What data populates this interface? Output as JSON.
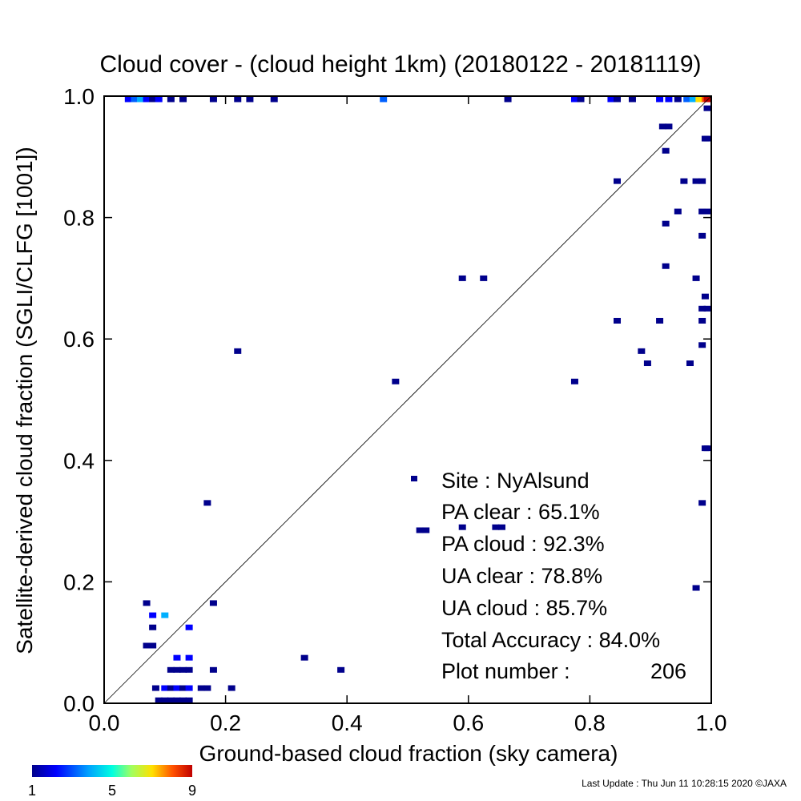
{
  "chart_data": {
    "type": "heatmap",
    "title": "Cloud cover - (cloud height 1km)  (20180122 - 20181119)",
    "xlabel": "Ground-based cloud fraction (sky camera)",
    "ylabel": "Satellite-derived cloud fraction (SGLI/CLFG [1001])",
    "xlim": [
      0,
      1
    ],
    "ylim": [
      0,
      1
    ],
    "xticks": [
      "0.0",
      "0.2",
      "0.4",
      "0.6",
      "0.8",
      "1.0"
    ],
    "yticks": [
      "0.0",
      "0.2",
      "0.4",
      "0.6",
      "0.8",
      "1.0"
    ],
    "grid": false,
    "reference_line": "1:1 diagonal",
    "colorbar": {
      "min": 1,
      "max": 9,
      "ticks": [
        "1",
        "5",
        "9"
      ],
      "colormap": "rainbow (blue to red)"
    },
    "stats": {
      "site": "Site : NyAlsund",
      "pa_clear": "PA clear :  65.1%",
      "pa_cloud": "PA cloud :  92.3%",
      "ua_clear": "UA clear :  78.8%",
      "ua_cloud": "UA cloud :  85.7%",
      "total_accuracy": "Total Accuracy :  84.0%",
      "plot_number_label": "Plot number :",
      "plot_number": "206"
    },
    "footer": "Last Update : Thu Jun 11 10:28:15 2020  ©JAXA",
    "points": [
      {
        "x": 0.04,
        "y": 1.0,
        "c": 2
      },
      {
        "x": 0.05,
        "y": 1.0,
        "c": 3
      },
      {
        "x": 0.06,
        "y": 1.0,
        "c": 4
      },
      {
        "x": 0.07,
        "y": 1.0,
        "c": 2
      },
      {
        "x": 0.08,
        "y": 1.0,
        "c": 1
      },
      {
        "x": 0.09,
        "y": 1.0,
        "c": 2
      },
      {
        "x": 0.11,
        "y": 1.0,
        "c": 1
      },
      {
        "x": 0.13,
        "y": 1.0,
        "c": 1
      },
      {
        "x": 0.18,
        "y": 1.0,
        "c": 1
      },
      {
        "x": 0.22,
        "y": 1.0,
        "c": 1
      },
      {
        "x": 0.24,
        "y": 1.0,
        "c": 1
      },
      {
        "x": 0.28,
        "y": 1.0,
        "c": 1
      },
      {
        "x": 0.46,
        "y": 1.0,
        "c": 3
      },
      {
        "x": 0.665,
        "y": 1.0,
        "c": 1
      },
      {
        "x": 0.775,
        "y": 1.0,
        "c": 2
      },
      {
        "x": 0.785,
        "y": 1.0,
        "c": 1
      },
      {
        "x": 0.835,
        "y": 1.0,
        "c": 2
      },
      {
        "x": 0.845,
        "y": 1.0,
        "c": 1
      },
      {
        "x": 0.87,
        "y": 1.0,
        "c": 1
      },
      {
        "x": 0.915,
        "y": 1.0,
        "c": 2
      },
      {
        "x": 0.93,
        "y": 1.0,
        "c": 2
      },
      {
        "x": 0.945,
        "y": 1.0,
        "c": 1
      },
      {
        "x": 0.96,
        "y": 1.0,
        "c": 3
      },
      {
        "x": 0.97,
        "y": 1.0,
        "c": 4
      },
      {
        "x": 0.98,
        "y": 1.0,
        "c": 7
      },
      {
        "x": 0.99,
        "y": 1.0,
        "c": 8
      },
      {
        "x": 1.0,
        "y": 1.0,
        "c": 9
      },
      {
        "x": 0.995,
        "y": 0.98,
        "c": 1
      },
      {
        "x": 0.92,
        "y": 0.95,
        "c": 1
      },
      {
        "x": 0.93,
        "y": 0.95,
        "c": 1
      },
      {
        "x": 0.99,
        "y": 0.93,
        "c": 1
      },
      {
        "x": 0.995,
        "y": 0.93,
        "c": 1
      },
      {
        "x": 0.925,
        "y": 0.91,
        "c": 1
      },
      {
        "x": 0.845,
        "y": 0.86,
        "c": 1
      },
      {
        "x": 0.955,
        "y": 0.86,
        "c": 1
      },
      {
        "x": 0.975,
        "y": 0.86,
        "c": 1
      },
      {
        "x": 0.985,
        "y": 0.86,
        "c": 1
      },
      {
        "x": 0.985,
        "y": 0.81,
        "c": 1
      },
      {
        "x": 0.995,
        "y": 0.81,
        "c": 1
      },
      {
        "x": 0.945,
        "y": 0.81,
        "c": 1
      },
      {
        "x": 0.925,
        "y": 0.79,
        "c": 1
      },
      {
        "x": 0.985,
        "y": 0.77,
        "c": 1
      },
      {
        "x": 0.925,
        "y": 0.72,
        "c": 1
      },
      {
        "x": 0.59,
        "y": 0.7,
        "c": 1
      },
      {
        "x": 0.625,
        "y": 0.7,
        "c": 1
      },
      {
        "x": 0.975,
        "y": 0.7,
        "c": 1
      },
      {
        "x": 0.99,
        "y": 0.67,
        "c": 1
      },
      {
        "x": 0.985,
        "y": 0.65,
        "c": 1
      },
      {
        "x": 0.995,
        "y": 0.65,
        "c": 1
      },
      {
        "x": 0.845,
        "y": 0.63,
        "c": 1
      },
      {
        "x": 0.915,
        "y": 0.63,
        "c": 1
      },
      {
        "x": 0.985,
        "y": 0.63,
        "c": 1
      },
      {
        "x": 0.985,
        "y": 0.59,
        "c": 1
      },
      {
        "x": 0.22,
        "y": 0.58,
        "c": 1
      },
      {
        "x": 0.885,
        "y": 0.58,
        "c": 1
      },
      {
        "x": 0.895,
        "y": 0.56,
        "c": 1
      },
      {
        "x": 0.965,
        "y": 0.56,
        "c": 1
      },
      {
        "x": 0.48,
        "y": 0.53,
        "c": 1
      },
      {
        "x": 0.775,
        "y": 0.53,
        "c": 1
      },
      {
        "x": 0.99,
        "y": 0.42,
        "c": 1
      },
      {
        "x": 0.995,
        "y": 0.42,
        "c": 1
      },
      {
        "x": 0.17,
        "y": 0.33,
        "c": 1
      },
      {
        "x": 0.985,
        "y": 0.33,
        "c": 1
      },
      {
        "x": 0.59,
        "y": 0.29,
        "c": 1
      },
      {
        "x": 0.645,
        "y": 0.29,
        "c": 1
      },
      {
        "x": 0.655,
        "y": 0.29,
        "c": 1
      },
      {
        "x": 0.52,
        "y": 0.285,
        "c": 1
      },
      {
        "x": 0.53,
        "y": 0.285,
        "c": 1
      },
      {
        "x": 0.975,
        "y": 0.19,
        "c": 1
      },
      {
        "x": 0.07,
        "y": 0.165,
        "c": 1
      },
      {
        "x": 0.18,
        "y": 0.165,
        "c": 1
      },
      {
        "x": 0.08,
        "y": 0.145,
        "c": 2
      },
      {
        "x": 0.1,
        "y": 0.145,
        "c": 4
      },
      {
        "x": 0.08,
        "y": 0.125,
        "c": 1
      },
      {
        "x": 0.14,
        "y": 0.125,
        "c": 2
      },
      {
        "x": 0.07,
        "y": 0.095,
        "c": 1
      },
      {
        "x": 0.08,
        "y": 0.095,
        "c": 1
      },
      {
        "x": 0.12,
        "y": 0.075,
        "c": 2
      },
      {
        "x": 0.14,
        "y": 0.075,
        "c": 2
      },
      {
        "x": 0.33,
        "y": 0.075,
        "c": 1
      },
      {
        "x": 0.11,
        "y": 0.055,
        "c": 1
      },
      {
        "x": 0.12,
        "y": 0.055,
        "c": 1
      },
      {
        "x": 0.13,
        "y": 0.055,
        "c": 1
      },
      {
        "x": 0.14,
        "y": 0.055,
        "c": 1
      },
      {
        "x": 0.18,
        "y": 0.055,
        "c": 1
      },
      {
        "x": 0.39,
        "y": 0.055,
        "c": 1
      },
      {
        "x": 0.085,
        "y": 0.025,
        "c": 1
      },
      {
        "x": 0.1,
        "y": 0.025,
        "c": 2
      },
      {
        "x": 0.11,
        "y": 0.025,
        "c": 1
      },
      {
        "x": 0.12,
        "y": 0.025,
        "c": 2
      },
      {
        "x": 0.13,
        "y": 0.025,
        "c": 1
      },
      {
        "x": 0.14,
        "y": 0.025,
        "c": 2
      },
      {
        "x": 0.16,
        "y": 0.025,
        "c": 1
      },
      {
        "x": 0.17,
        "y": 0.025,
        "c": 1
      },
      {
        "x": 0.21,
        "y": 0.025,
        "c": 1
      },
      {
        "x": 0.09,
        "y": 0.005,
        "c": 1
      },
      {
        "x": 0.1,
        "y": 0.005,
        "c": 1
      },
      {
        "x": 0.11,
        "y": 0.005,
        "c": 1
      },
      {
        "x": 0.12,
        "y": 0.005,
        "c": 1
      },
      {
        "x": 0.13,
        "y": 0.005,
        "c": 1
      },
      {
        "x": 0.14,
        "y": 0.005,
        "c": 1
      }
    ]
  }
}
